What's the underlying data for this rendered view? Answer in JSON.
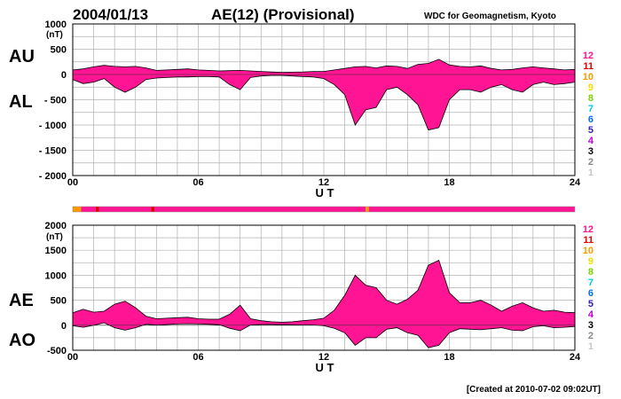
{
  "header": {
    "date": "2004/01/13",
    "title": "AE(12) (Provisional)",
    "source": "WDC for Geomagnetism, Kyoto"
  },
  "footer": {
    "created": "[Created at 2010-07-02 09:02UT]"
  },
  "chart_data": [
    {
      "type": "area",
      "panel": "upper",
      "xlabel": "U T",
      "unit": "(nT)",
      "ylim": [
        -2000,
        1000
      ],
      "y_ticks": [
        "1000",
        "500",
        "0",
        "- 500",
        "- 1000",
        "- 1500",
        "- 2000"
      ],
      "x_ticks": [
        "00",
        "06",
        "12",
        "18",
        "24"
      ],
      "xlim": [
        0,
        24
      ],
      "grid": true,
      "series_labels": [
        "AU",
        "AL"
      ],
      "fill_color": "#ff1493",
      "series": [
        {
          "name": "AU",
          "x": [
            0,
            0.5,
            1,
            1.5,
            2,
            2.5,
            3,
            3.5,
            4,
            4.5,
            5,
            5.5,
            6,
            6.5,
            7,
            7.5,
            8,
            8.5,
            9,
            9.5,
            10,
            10.5,
            11,
            11.5,
            12,
            12.5,
            13,
            13.5,
            14,
            14.5,
            15,
            15.5,
            16,
            16.5,
            17,
            17.5,
            18,
            18.5,
            19,
            19.5,
            20,
            20.5,
            21,
            21.5,
            22,
            22.5,
            23,
            23.5,
            24
          ],
          "values": [
            90,
            110,
            150,
            180,
            160,
            150,
            160,
            130,
            80,
            90,
            100,
            110,
            90,
            80,
            70,
            75,
            80,
            70,
            60,
            50,
            40,
            45,
            50,
            60,
            60,
            90,
            120,
            150,
            160,
            130,
            170,
            160,
            120,
            200,
            220,
            300,
            190,
            160,
            150,
            170,
            120,
            90,
            100,
            130,
            150,
            130,
            110,
            90,
            100
          ]
        },
        {
          "name": "AL",
          "x": [
            0,
            0.5,
            1,
            1.5,
            2,
            2.5,
            3,
            3.5,
            4,
            4.5,
            5,
            5.5,
            6,
            6.5,
            7,
            7.5,
            8,
            8.5,
            9,
            9.5,
            10,
            10.5,
            11,
            11.5,
            12,
            12.5,
            13,
            13.5,
            14,
            14.5,
            15,
            15.5,
            16,
            16.5,
            17,
            17.5,
            18,
            18.5,
            19,
            19.5,
            20,
            20.5,
            21,
            21.5,
            22,
            22.5,
            23,
            23.5,
            24
          ],
          "values": [
            -100,
            -180,
            -150,
            -80,
            -250,
            -350,
            -250,
            -100,
            -70,
            -60,
            -50,
            -50,
            -40,
            -40,
            -50,
            -200,
            -300,
            -60,
            -30,
            -20,
            -20,
            -30,
            -40,
            -50,
            -80,
            -200,
            -400,
            -1000,
            -700,
            -650,
            -300,
            -250,
            -400,
            -600,
            -1100,
            -1050,
            -500,
            -300,
            -300,
            -350,
            -250,
            -200,
            -300,
            -350,
            -200,
            -150,
            -200,
            -180,
            -150
          ]
        }
      ]
    },
    {
      "type": "area",
      "panel": "lower",
      "xlabel": "U T",
      "unit": "(nT)",
      "ylim": [
        -500,
        2000
      ],
      "y_ticks": [
        "2000",
        "1500",
        "1000",
        "500",
        "0",
        "-500"
      ],
      "x_ticks": [
        "00",
        "06",
        "12",
        "18",
        "24"
      ],
      "xlim": [
        0,
        24
      ],
      "grid": true,
      "series_labels": [
        "AE",
        "AO"
      ],
      "fill_color": "#ff1493",
      "series": [
        {
          "name": "AE",
          "x": [
            0,
            0.5,
            1,
            1.5,
            2,
            2.5,
            3,
            3.5,
            4,
            4.5,
            5,
            5.5,
            6,
            6.5,
            7,
            7.5,
            8,
            8.5,
            9,
            9.5,
            10,
            10.5,
            11,
            11.5,
            12,
            12.5,
            13,
            13.5,
            14,
            14.5,
            15,
            15.5,
            16,
            16.5,
            17,
            17.5,
            18,
            18.5,
            19,
            19.5,
            20,
            20.5,
            21,
            21.5,
            22,
            22.5,
            23,
            23.5,
            24
          ],
          "values": [
            250,
            320,
            260,
            280,
            420,
            480,
            350,
            180,
            130,
            140,
            150,
            160,
            130,
            120,
            120,
            220,
            400,
            130,
            90,
            70,
            60,
            70,
            90,
            110,
            140,
            300,
            600,
            1000,
            800,
            750,
            500,
            420,
            520,
            700,
            1200,
            1300,
            650,
            450,
            450,
            500,
            400,
            280,
            380,
            450,
            350,
            280,
            300,
            260,
            250
          ]
        },
        {
          "name": "AO",
          "x": [
            0,
            0.5,
            1,
            1.5,
            2,
            2.5,
            3,
            3.5,
            4,
            4.5,
            5,
            5.5,
            6,
            6.5,
            7,
            7.5,
            8,
            8.5,
            9,
            9.5,
            10,
            10.5,
            11,
            11.5,
            12,
            12.5,
            13,
            13.5,
            14,
            14.5,
            15,
            15.5,
            16,
            16.5,
            17,
            17.5,
            18,
            18.5,
            19,
            19.5,
            20,
            20.5,
            21,
            21.5,
            22,
            22.5,
            23,
            23.5,
            24
          ],
          "values": [
            -10,
            -40,
            0,
            50,
            -50,
            -100,
            -50,
            20,
            5,
            15,
            25,
            30,
            25,
            20,
            10,
            -60,
            -110,
            5,
            15,
            15,
            10,
            8,
            5,
            5,
            -10,
            -60,
            -150,
            -400,
            -250,
            -250,
            -80,
            -50,
            -150,
            -200,
            -450,
            -400,
            -150,
            -70,
            -80,
            -90,
            -70,
            -50,
            -100,
            -110,
            -30,
            -10,
            -50,
            -40,
            -25
          ]
        }
      ]
    }
  ],
  "station_legend": [
    {
      "label": "12",
      "color": "#ff1493"
    },
    {
      "label": "11",
      "color": "#e00000"
    },
    {
      "label": "10",
      "color": "#ff9900"
    },
    {
      "label": "9",
      "color": "#f0e000"
    },
    {
      "label": "8",
      "color": "#7ad400"
    },
    {
      "label": "7",
      "color": "#00c8e0"
    },
    {
      "label": "6",
      "color": "#0070ff"
    },
    {
      "label": "5",
      "color": "#3020c0"
    },
    {
      "label": "4",
      "color": "#c000e0"
    },
    {
      "label": "3",
      "color": "#000000"
    },
    {
      "label": "2",
      "color": "#888888"
    },
    {
      "label": "1",
      "color": "#c8c8c8"
    }
  ],
  "station_bar": {
    "segments": [
      {
        "from": 0,
        "to": 0.4,
        "color": "#ff9900"
      },
      {
        "from": 0.4,
        "to": 1.1,
        "color": "#ff1493"
      },
      {
        "from": 1.1,
        "to": 1.25,
        "color": "#e00000"
      },
      {
        "from": 1.25,
        "to": 3.75,
        "color": "#ff1493"
      },
      {
        "from": 3.75,
        "to": 3.9,
        "color": "#e00000"
      },
      {
        "from": 3.9,
        "to": 14.0,
        "color": "#ff1493"
      },
      {
        "from": 14.0,
        "to": 14.15,
        "color": "#ff9900"
      },
      {
        "from": 14.15,
        "to": 24,
        "color": "#ff1493"
      }
    ]
  }
}
